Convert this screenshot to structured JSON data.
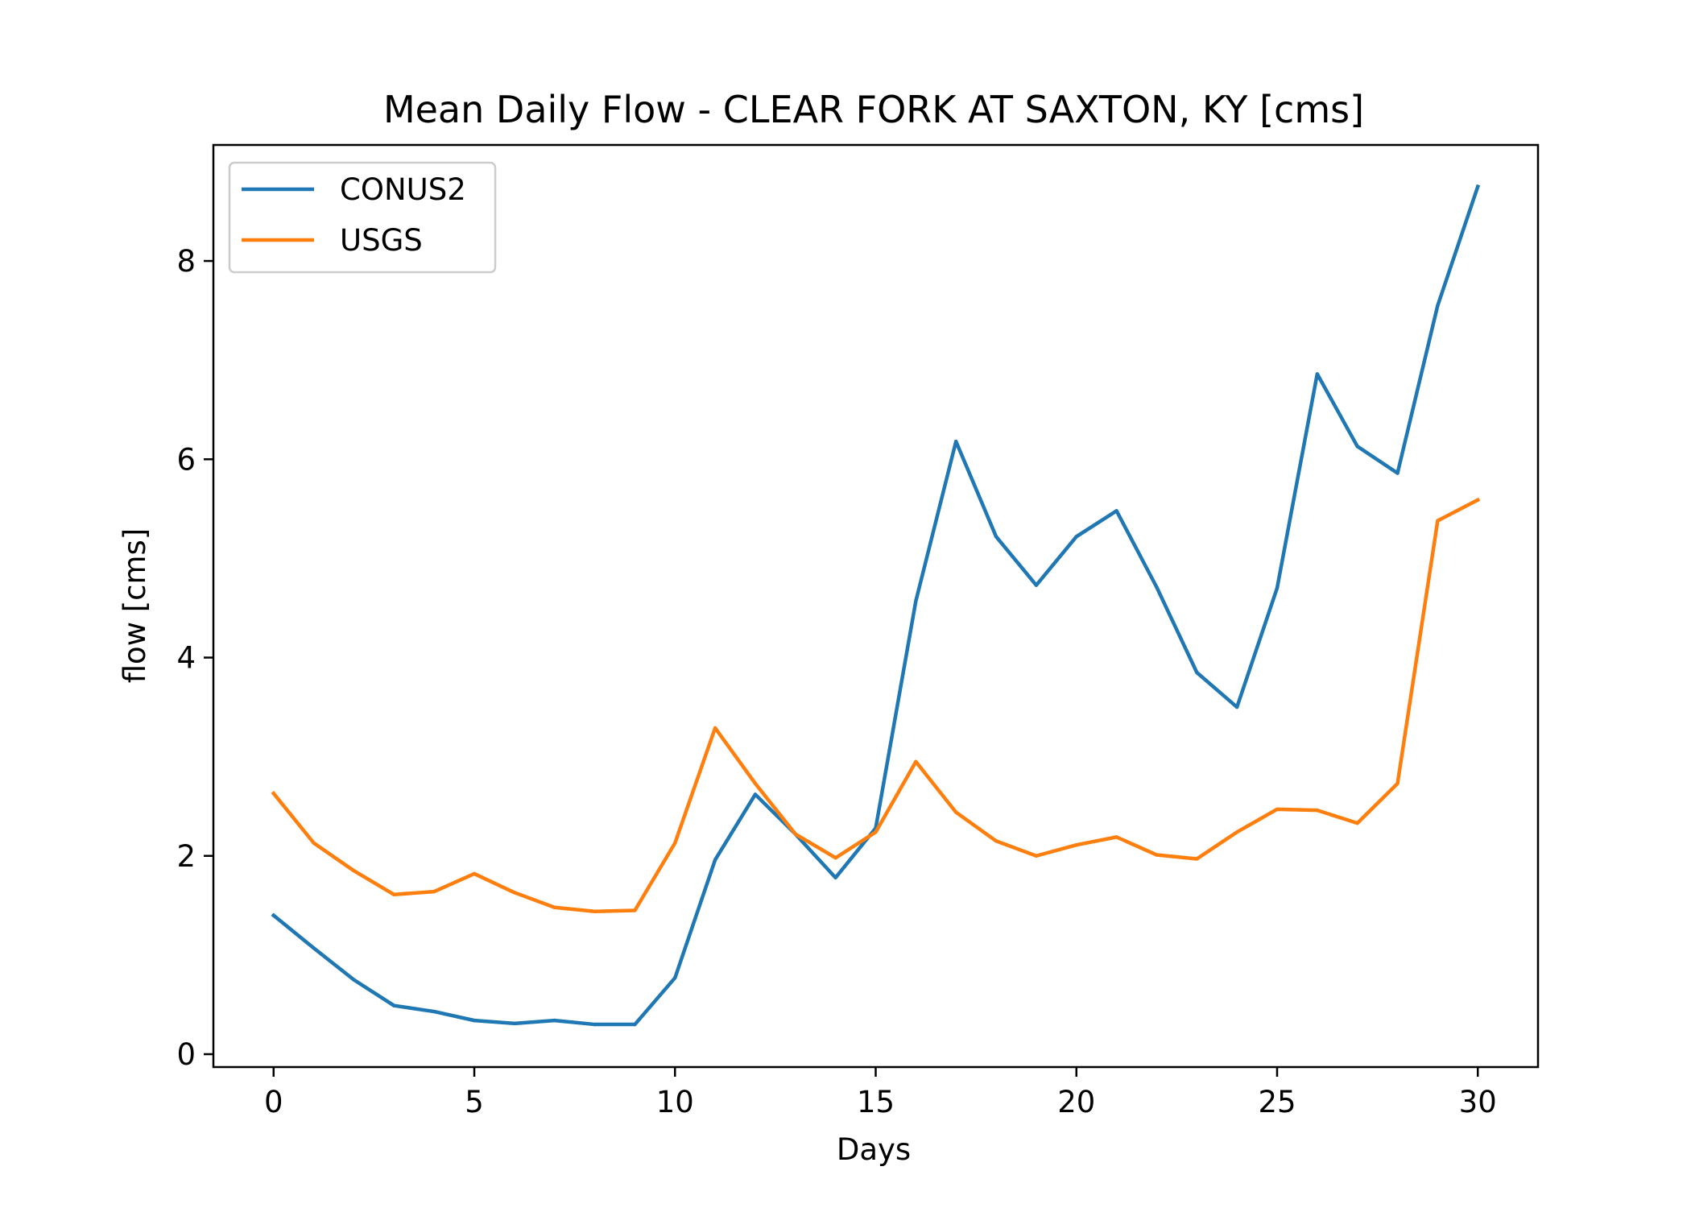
{
  "chart_data": {
    "type": "line",
    "title": "Mean Daily Flow - CLEAR FORK AT SAXTON, KY [cms]",
    "xlabel": "Days",
    "ylabel": "flow [cms]",
    "xlim": [
      -1.5,
      31.5
    ],
    "ylim": [
      -0.13,
      9.17
    ],
    "xticks": [
      0,
      5,
      10,
      15,
      20,
      25,
      30
    ],
    "yticks": [
      0,
      2,
      4,
      6,
      8
    ],
    "grid": false,
    "legend_position": "upper-left",
    "x": [
      0,
      1,
      2,
      3,
      4,
      5,
      6,
      7,
      8,
      9,
      10,
      11,
      12,
      13,
      14,
      15,
      16,
      17,
      18,
      19,
      20,
      21,
      22,
      23,
      24,
      25,
      26,
      27,
      28,
      29,
      30
    ],
    "series": [
      {
        "name": "CONUS2",
        "color": "#1f77b4",
        "values": [
          1.4,
          1.07,
          0.75,
          0.49,
          0.43,
          0.34,
          0.31,
          0.34,
          0.3,
          0.3,
          0.77,
          1.96,
          2.62,
          2.22,
          1.78,
          2.28,
          4.57,
          6.18,
          5.22,
          4.73,
          5.22,
          5.48,
          4.71,
          3.85,
          3.5,
          4.7,
          6.86,
          6.13,
          5.86,
          7.55,
          8.75
        ]
      },
      {
        "name": "USGS",
        "color": "#ff7f0e",
        "values": [
          2.63,
          2.13,
          1.85,
          1.61,
          1.64,
          1.82,
          1.63,
          1.48,
          1.44,
          1.45,
          2.13,
          3.29,
          2.73,
          2.22,
          1.98,
          2.24,
          2.95,
          2.44,
          2.15,
          2.0,
          2.11,
          2.19,
          2.01,
          1.97,
          2.24,
          2.47,
          2.46,
          2.33,
          2.73,
          5.38,
          5.59
        ]
      }
    ]
  }
}
